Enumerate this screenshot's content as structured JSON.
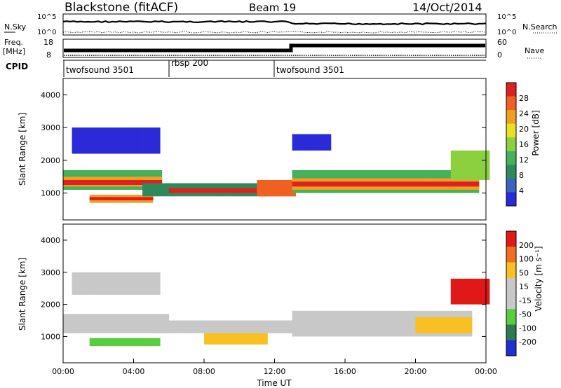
{
  "header": {
    "radar": "Blackstone (fitACF)",
    "beam": "Beam 19",
    "date": "14/Oct/2014"
  },
  "panels": {
    "noise": {
      "left_label": "N.Sky",
      "right_label": "N.Search",
      "left_ticks": [
        "10^5",
        "10^0"
      ],
      "right_ticks": [
        "10^5",
        "10^0"
      ]
    },
    "freq": {
      "left_label": "Freq.",
      "left_unit": "[MHz]",
      "right_label": "Nave",
      "left_ticks": [
        "18",
        "8"
      ],
      "right_ticks": [
        "60",
        "0"
      ]
    },
    "cpid": {
      "label": "CPID",
      "segments": [
        {
          "name": "twofsound 3501",
          "start_h": 0,
          "end_h": 6
        },
        {
          "name": "rbsp 200",
          "start_h": 6,
          "end_h": 12
        },
        {
          "name": "twofsound 3501",
          "start_h": 12,
          "end_h": 24
        }
      ]
    }
  },
  "chart_data": [
    {
      "type": "heatmap",
      "title": "",
      "ylabel": "Slant Range [km]",
      "yticks": [
        "1000",
        "2000",
        "3000",
        "4000"
      ],
      "ylim": [
        180,
        4500
      ],
      "colorbar": {
        "label": "Power [dB]",
        "ticks": [
          "4",
          "8",
          "12",
          "16",
          "20",
          "24",
          "28"
        ],
        "colors": [
          "#2a2ad8",
          "#3a64c0",
          "#2e8a5a",
          "#46b05a",
          "#8cd040",
          "#e8e020",
          "#f0a020",
          "#f06020",
          "#e02020"
        ]
      }
    },
    {
      "type": "heatmap",
      "title": "",
      "ylabel": "Slant Range [km]",
      "yticks": [
        "1000",
        "2000",
        "3000",
        "4000"
      ],
      "ylim": [
        180,
        4500
      ],
      "colorbar": {
        "label": "Velocity [m s⁻¹]",
        "ticks": [
          "200",
          "100",
          "50",
          "15",
          "-15",
          "-50",
          "-100",
          "-200"
        ],
        "colors": [
          "#2030d0",
          "#2e7a50",
          "#5acc40",
          "#c8c8c8",
          "#c8c8c8",
          "#f8c020",
          "#f07020",
          "#e01818"
        ]
      }
    }
  ],
  "xaxis": {
    "label": "Time UT",
    "ticks": [
      "00:00",
      "04:00",
      "08:00",
      "12:00",
      "16:00",
      "20:00",
      "00:00"
    ]
  }
}
